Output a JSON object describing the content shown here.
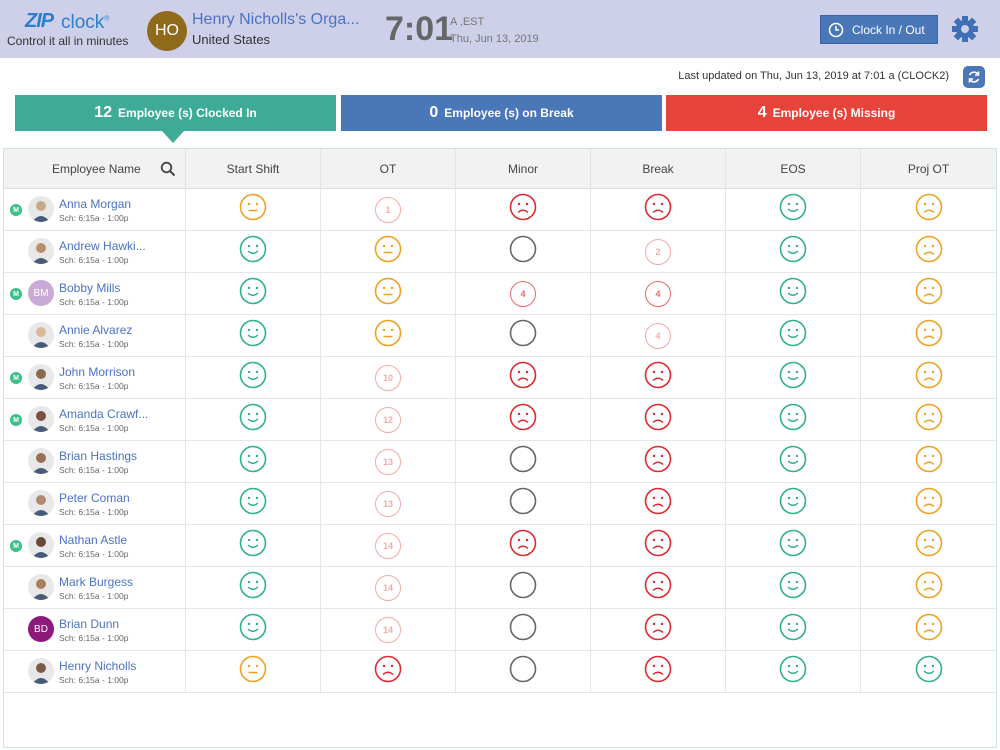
{
  "header": {
    "logo_zip": "ZIP",
    "logo_clock": "clock",
    "logo_reg": "®",
    "tagline": "Control it all in minutes",
    "org_initials": "HO",
    "org_name": "Henry Nicholls's Orga...",
    "org_country": "United States",
    "time": "7:01",
    "time_zone": "A ,EST",
    "date": "Thu, Jun 13, 2019",
    "clock_button_label": "Clock In / Out",
    "gear_icon": "gear-icon"
  },
  "last_updated": "Last updated on Thu, Jun 13, 2019 at 7:01 a (CLOCK2)",
  "stats": {
    "clocked_in_count": "12",
    "clocked_in_label": "Employee (s) Clocked In",
    "on_break_count": "0",
    "on_break_label": "Employee (s) on Break",
    "missing_count": "4",
    "missing_label": "Employee (s) Missing"
  },
  "colors": {
    "green": "#2fb08a",
    "orange": "#f0a020",
    "red": "#e0282e",
    "gray": "#666666",
    "light_red": "#f3aaa8",
    "teal": "#3dab96",
    "blue": "#4a77b8",
    "missing_red": "#e6433a"
  },
  "columns": [
    "Employee Name",
    "Start Shift",
    "OT",
    "Minor",
    "Break",
    "EOS",
    "Proj OT"
  ],
  "employees": [
    {
      "name": "Anna Morgan",
      "sch": "Sch: 6:15a - 1:00p",
      "badge": "M",
      "initials": "",
      "avatar_color": "#c9a98c",
      "cells": [
        {
          "t": "neutral",
          "c": "orange"
        },
        {
          "t": "num",
          "v": "1",
          "c": "light"
        },
        {
          "t": "sad",
          "c": "red"
        },
        {
          "t": "sad",
          "c": "red"
        },
        {
          "t": "smile",
          "c": "green"
        },
        {
          "t": "sad",
          "c": "orange"
        }
      ]
    },
    {
      "name": "Andrew Hawki...",
      "sch": "Sch: 6:15a - 1:00p",
      "badge": "",
      "initials": "",
      "avatar_color": "#b89070",
      "cells": [
        {
          "t": "smile",
          "c": "green"
        },
        {
          "t": "neutral",
          "c": "orange"
        },
        {
          "t": "empty",
          "c": "gray"
        },
        {
          "t": "num",
          "v": "2",
          "c": "light"
        },
        {
          "t": "smile",
          "c": "green"
        },
        {
          "t": "sad",
          "c": "orange"
        }
      ]
    },
    {
      "name": "Bobby Mills",
      "sch": "Sch: 6:15a - 1:00p",
      "badge": "M",
      "initials": "BM",
      "avatar_color": "#c9a9d6",
      "cells": [
        {
          "t": "smile",
          "c": "green"
        },
        {
          "t": "neutral",
          "c": "orange"
        },
        {
          "t": "num",
          "v": "4",
          "c": "medium"
        },
        {
          "t": "num",
          "v": "4",
          "c": "medium"
        },
        {
          "t": "smile",
          "c": "green"
        },
        {
          "t": "sad",
          "c": "orange"
        }
      ]
    },
    {
      "name": "Annie Alvarez",
      "sch": "Sch: 6:15a - 1:00p",
      "badge": "",
      "initials": "",
      "avatar_color": "#d8b898",
      "cells": [
        {
          "t": "smile",
          "c": "green"
        },
        {
          "t": "neutral",
          "c": "orange"
        },
        {
          "t": "empty",
          "c": "gray"
        },
        {
          "t": "num",
          "v": "4",
          "c": "light"
        },
        {
          "t": "smile",
          "c": "green"
        },
        {
          "t": "sad",
          "c": "orange"
        }
      ]
    },
    {
      "name": "John Morrison",
      "sch": "Sch: 6:15a - 1:00p",
      "badge": "M",
      "initials": "",
      "avatar_color": "#8a6a50",
      "cells": [
        {
          "t": "smile",
          "c": "green"
        },
        {
          "t": "num",
          "v": "10",
          "c": "light"
        },
        {
          "t": "sad",
          "c": "red"
        },
        {
          "t": "sad",
          "c": "red"
        },
        {
          "t": "smile",
          "c": "green"
        },
        {
          "t": "sad",
          "c": "orange"
        }
      ]
    },
    {
      "name": "Amanda Crawf...",
      "sch": "Sch: 6:15a - 1:00p",
      "badge": "M",
      "initials": "",
      "avatar_color": "#7a5040",
      "cells": [
        {
          "t": "smile",
          "c": "green"
        },
        {
          "t": "num",
          "v": "12",
          "c": "light"
        },
        {
          "t": "sad",
          "c": "red"
        },
        {
          "t": "sad",
          "c": "red"
        },
        {
          "t": "smile",
          "c": "green"
        },
        {
          "t": "sad",
          "c": "orange"
        }
      ]
    },
    {
      "name": "Brian Hastings",
      "sch": "Sch: 6:15a - 1:00p",
      "badge": "",
      "initials": "",
      "avatar_color": "#9a7055",
      "cells": [
        {
          "t": "smile",
          "c": "green"
        },
        {
          "t": "num",
          "v": "13",
          "c": "light"
        },
        {
          "t": "empty",
          "c": "gray"
        },
        {
          "t": "sad",
          "c": "red"
        },
        {
          "t": "smile",
          "c": "green"
        },
        {
          "t": "sad",
          "c": "orange"
        }
      ]
    },
    {
      "name": "Peter Coman",
      "sch": "Sch: 6:15a - 1:00p",
      "badge": "",
      "initials": "",
      "avatar_color": "#b08a70",
      "cells": [
        {
          "t": "smile",
          "c": "green"
        },
        {
          "t": "num",
          "v": "13",
          "c": "light"
        },
        {
          "t": "empty",
          "c": "gray"
        },
        {
          "t": "sad",
          "c": "red"
        },
        {
          "t": "smile",
          "c": "green"
        },
        {
          "t": "sad",
          "c": "orange"
        }
      ]
    },
    {
      "name": "Nathan Astle",
      "sch": "Sch: 6:15a - 1:00p",
      "badge": "M",
      "initials": "",
      "avatar_color": "#6a4838",
      "cells": [
        {
          "t": "smile",
          "c": "green"
        },
        {
          "t": "num",
          "v": "14",
          "c": "light"
        },
        {
          "t": "sad",
          "c": "red"
        },
        {
          "t": "sad",
          "c": "red"
        },
        {
          "t": "smile",
          "c": "green"
        },
        {
          "t": "sad",
          "c": "orange"
        }
      ]
    },
    {
      "name": "Mark Burgess",
      "sch": "Sch: 6:15a - 1:00p",
      "badge": "",
      "initials": "",
      "avatar_color": "#a88060",
      "cells": [
        {
          "t": "smile",
          "c": "green"
        },
        {
          "t": "num",
          "v": "14",
          "c": "light"
        },
        {
          "t": "empty",
          "c": "gray"
        },
        {
          "t": "sad",
          "c": "red"
        },
        {
          "t": "smile",
          "c": "green"
        },
        {
          "t": "sad",
          "c": "orange"
        }
      ]
    },
    {
      "name": "Brian Dunn",
      "sch": "Sch: 6:15a - 1:00p",
      "badge": "",
      "initials": "BD",
      "avatar_color": "#8b1a7a",
      "cells": [
        {
          "t": "smile",
          "c": "green"
        },
        {
          "t": "num",
          "v": "14",
          "c": "light"
        },
        {
          "t": "empty",
          "c": "gray"
        },
        {
          "t": "sad",
          "c": "red"
        },
        {
          "t": "smile",
          "c": "green"
        },
        {
          "t": "sad",
          "c": "orange"
        }
      ]
    },
    {
      "name": "Henry Nicholls",
      "sch": "Sch: 6:15a - 1:00p",
      "badge": "",
      "initials": "",
      "avatar_color": "#7a5a48",
      "cells": [
        {
          "t": "neutral",
          "c": "orange"
        },
        {
          "t": "sad",
          "c": "red"
        },
        {
          "t": "empty",
          "c": "gray"
        },
        {
          "t": "sad",
          "c": "red"
        },
        {
          "t": "smile",
          "c": "green"
        },
        {
          "t": "smile",
          "c": "green"
        }
      ]
    }
  ]
}
